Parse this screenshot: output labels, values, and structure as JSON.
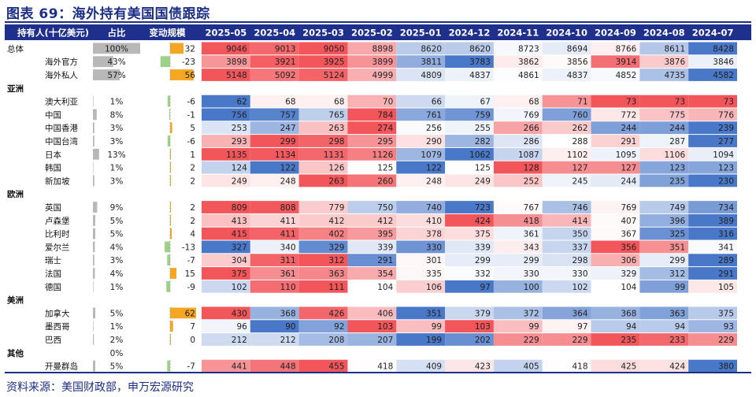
{
  "figure": {
    "title": "图表 69：海外持有美国国债跟踪",
    "source": "资料来源：美国财政部，申万宏源研究"
  },
  "colors": {
    "title": "#1d2f86",
    "header_bg": "#1e2f8c",
    "high": "#f2555a",
    "low": "#4a78c8",
    "share_bar": "#b8b8b8",
    "change_pos": "#f5a623",
    "change_neg": "#9fd08a"
  },
  "chart_data": {
    "type": "table",
    "columns": {
      "holder": "持有人(十亿美元)",
      "share": "占比",
      "change": "变动规模",
      "months": [
        "2025-05",
        "2025-04",
        "2025-03",
        "2025-02",
        "2025-01",
        "2024-12",
        "2024-11",
        "2024-10",
        "2024-09",
        "2024-08",
        "2024-07"
      ]
    },
    "rows": [
      {
        "kind": "data",
        "name": "总体",
        "group_level": true,
        "share": "100%",
        "share_value": 100,
        "change": 32,
        "values": [
          9046,
          9013,
          9050,
          8898,
          8620,
          8620,
          8723,
          8694,
          8766,
          8611,
          8428
        ]
      },
      {
        "kind": "data",
        "name": "海外官方",
        "share": "43%",
        "share_value": 43,
        "change": -23,
        "values": [
          3898,
          3921,
          3925,
          3899,
          3811,
          3783,
          3862,
          3856,
          3914,
          3876,
          3846
        ]
      },
      {
        "kind": "data",
        "name": "海外私人",
        "share": "57%",
        "share_value": 57,
        "change": 56,
        "values": [
          5148,
          5092,
          5124,
          4999,
          4809,
          4837,
          4861,
          4837,
          4852,
          4735,
          4582
        ]
      },
      {
        "kind": "group",
        "name": "亚洲"
      },
      {
        "kind": "data",
        "name": "澳大利亚",
        "share": "1%",
        "share_value": 1,
        "change": -6,
        "values": [
          62,
          68,
          68,
          70,
          66,
          67,
          68,
          71,
          73,
          73,
          73
        ]
      },
      {
        "kind": "data",
        "name": "中国",
        "share": "8%",
        "share_value": 8,
        "change": -1,
        "values": [
          756,
          757,
          765,
          784,
          761,
          759,
          769,
          760,
          772,
          775,
          776
        ]
      },
      {
        "kind": "data",
        "name": "中国香港",
        "share": "3%",
        "share_value": 3,
        "change": 5,
        "values": [
          253,
          247,
          263,
          274,
          256,
          255,
          266,
          262,
          244,
          244,
          239
        ]
      },
      {
        "kind": "data",
        "name": "中国台湾",
        "share": "3%",
        "share_value": 3,
        "change": -6,
        "values": [
          293,
          299,
          298,
          295,
          290,
          282,
          286,
          288,
          291,
          287,
          277
        ]
      },
      {
        "kind": "data",
        "name": "日本",
        "share": "13%",
        "share_value": 13,
        "change": 1,
        "values": [
          1135,
          1134,
          1131,
          1126,
          1079,
          1062,
          1087,
          1102,
          1095,
          1106,
          1094
        ]
      },
      {
        "kind": "data",
        "name": "韩国",
        "share": "1%",
        "share_value": 1,
        "change": 2,
        "values": [
          124,
          122,
          126,
          125,
          122,
          125,
          128,
          127,
          127,
          123,
          123
        ]
      },
      {
        "kind": "data",
        "name": "新加坡",
        "share": "3%",
        "share_value": 3,
        "change": 2,
        "values": [
          249,
          248,
          263,
          260,
          248,
          249,
          252,
          245,
          244,
          235,
          230
        ]
      },
      {
        "kind": "group",
        "name": "欧洲"
      },
      {
        "kind": "data",
        "name": "英国",
        "share": "9%",
        "share_value": 9,
        "change": 2,
        "values": [
          809,
          808,
          779,
          750,
          740,
          723,
          767,
          746,
          769,
          749,
          734
        ]
      },
      {
        "kind": "data",
        "name": "卢森堡",
        "share": "5%",
        "share_value": 5,
        "change": 2,
        "values": [
          413,
          411,
          412,
          412,
          410,
          424,
          418,
          414,
          407,
          396,
          389
        ]
      },
      {
        "kind": "data",
        "name": "比利时",
        "share": "5%",
        "share_value": 5,
        "change": 4,
        "values": [
          415,
          411,
          402,
          395,
          378,
          375,
          361,
          350,
          367,
          325,
          316
        ]
      },
      {
        "kind": "data",
        "name": "爱尔兰",
        "share": "4%",
        "share_value": 4,
        "change": -13,
        "values": [
          327,
          340,
          329,
          339,
          330,
          339,
          343,
          337,
          356,
          351,
          341
        ]
      },
      {
        "kind": "data",
        "name": "瑞士",
        "share": "3%",
        "share_value": 3,
        "change": -7,
        "values": [
          304,
          311,
          312,
          291,
          301,
          299,
          299,
          298,
          306,
          299,
          289
        ]
      },
      {
        "kind": "data",
        "name": "法国",
        "share": "4%",
        "share_value": 4,
        "change": 15,
        "values": [
          375,
          361,
          363,
          354,
          335,
          332,
          330,
          330,
          329,
          312,
          291
        ]
      },
      {
        "kind": "data",
        "name": "德国",
        "share": "1%",
        "share_value": 1,
        "change": -9,
        "values": [
          102,
          110,
          111,
          104,
          106,
          97,
          100,
          102,
          104,
          99,
          105
        ]
      },
      {
        "kind": "group",
        "name": "美洲"
      },
      {
        "kind": "data",
        "name": "加拿大",
        "share": "5%",
        "share_value": 5,
        "change": 62,
        "values": [
          430,
          368,
          426,
          406,
          351,
          379,
          372,
          364,
          368,
          363,
          375
        ]
      },
      {
        "kind": "data",
        "name": "墨西哥",
        "share": "1%",
        "share_value": 1,
        "change": 7,
        "values": [
          96,
          90,
          92,
          103,
          99,
          103,
          99,
          97,
          94,
          94,
          93
        ]
      },
      {
        "kind": "data",
        "name": "巴西",
        "share": "2%",
        "share_value": 2,
        "change": 0,
        "values": [
          212,
          212,
          208,
          207,
          199,
          202,
          229,
          229,
          235,
          233,
          229
        ]
      },
      {
        "kind": "group",
        "name": "其他",
        "share": "0%",
        "share_value": 0
      },
      {
        "kind": "data",
        "name": "开曼群岛",
        "share": "5%",
        "share_value": 5,
        "change": -7,
        "values": [
          441,
          448,
          455,
          418,
          409,
          423,
          405,
          418,
          425,
          424,
          380
        ]
      }
    ]
  }
}
